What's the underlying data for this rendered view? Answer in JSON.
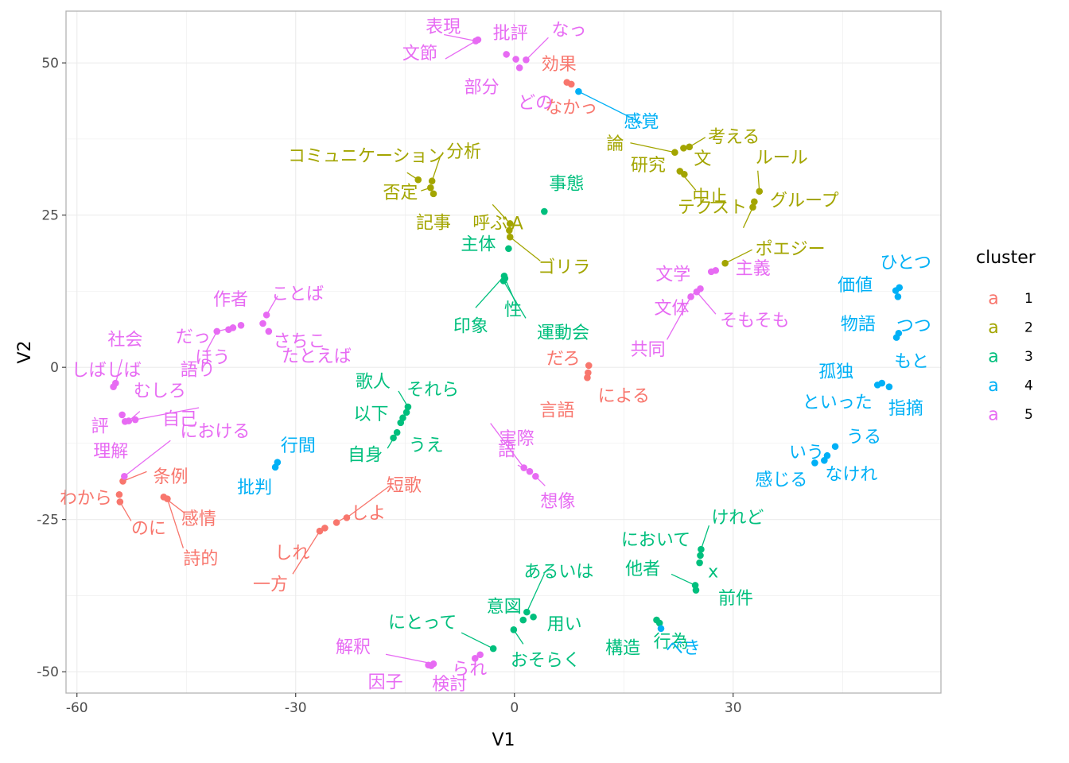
{
  "chart_data": {
    "type": "scatter",
    "xlabel": "V1",
    "ylabel": "V2",
    "xlim": [
      -61.5,
      58.5
    ],
    "ylim": [
      -53.5,
      58.5
    ],
    "x_ticks": [
      -60,
      -30,
      0,
      30
    ],
    "y_ticks": [
      -50,
      -25,
      0,
      25,
      50
    ],
    "grid": true,
    "legend": {
      "title": "cluster",
      "position": "right",
      "key_glyph": "a",
      "entries": [
        {
          "label": "1",
          "color": "#F8766D"
        },
        {
          "label": "2",
          "color": "#A3A500"
        },
        {
          "label": "3",
          "color": "#00BF7D"
        },
        {
          "label": "4",
          "color": "#00B0F6"
        },
        {
          "label": "5",
          "color": "#E76BF3"
        }
      ]
    },
    "series": [
      {
        "cluster": "1",
        "color": "#F8766D",
        "points": [
          {
            "label": "効果",
            "x": 7.2,
            "y": 46.8
          },
          {
            "label": "なかっ",
            "x": 7.8,
            "y": 46.5
          },
          {
            "label": "だろ",
            "x": 10.2,
            "y": 0.3
          },
          {
            "label": "による",
            "x": 10.1,
            "y": -0.9
          },
          {
            "label": "言語",
            "x": 10.0,
            "y": -1.7
          },
          {
            "label": "短歌",
            "x": -23.0,
            "y": -24.7
          },
          {
            "label": "しよ",
            "x": -24.4,
            "y": -25.5
          },
          {
            "label": "しれ",
            "x": -26.0,
            "y": -26.4
          },
          {
            "label": "一方",
            "x": -26.7,
            "y": -26.9
          },
          {
            "label": "条例",
            "x": -53.7,
            "y": -18.7
          },
          {
            "label": "わから",
            "x": -54.2,
            "y": -20.9
          },
          {
            "label": "のに",
            "x": -54.1,
            "y": -22.1
          },
          {
            "label": "感情",
            "x": -48.1,
            "y": -21.3
          },
          {
            "label": "詩的",
            "x": -47.6,
            "y": -21.6
          }
        ]
      },
      {
        "cluster": "2",
        "color": "#A3A500",
        "points": [
          {
            "label": "論",
            "x": 22.0,
            "y": 35.3
          },
          {
            "label": "考える",
            "x": 24.0,
            "y": 36.2
          },
          {
            "label": "文",
            "x": 23.2,
            "y": 36.0
          },
          {
            "label": "研究",
            "x": 22.7,
            "y": 32.2
          },
          {
            "label": "中止",
            "x": 23.3,
            "y": 31.7
          },
          {
            "label": "コミュニケーション",
            "x": -13.2,
            "y": 30.8
          },
          {
            "label": "分析",
            "x": -11.3,
            "y": 30.6
          },
          {
            "label": "否定",
            "x": -11.5,
            "y": 29.5
          },
          {
            "label": "記事",
            "x": -11.1,
            "y": 28.5
          },
          {
            "label": "呼ぶ",
            "x": -0.6,
            "y": 23.6
          },
          {
            "label": "A",
            "x": -0.7,
            "y": 22.5
          },
          {
            "label": "ゴリラ",
            "x": -0.6,
            "y": 21.4
          },
          {
            "label": "ルール",
            "x": 33.6,
            "y": 28.9
          },
          {
            "label": "グループ",
            "x": 32.9,
            "y": 27.2
          },
          {
            "label": "テクスト",
            "x": 32.7,
            "y": 26.3
          },
          {
            "label": "ポエジー",
            "x": 28.9,
            "y": 17.1
          }
        ]
      },
      {
        "cluster": "3",
        "color": "#00BF7D",
        "points": [
          {
            "label": "事態",
            "x": 4.1,
            "y": 25.6
          },
          {
            "label": "主体",
            "x": -0.8,
            "y": 19.5
          },
          {
            "label": "印象",
            "x": -1.4,
            "y": 15.0
          },
          {
            "label": "性",
            "x": -1.3,
            "y": 14.6
          },
          {
            "label": "運動会",
            "x": -1.5,
            "y": 14.2
          },
          {
            "label": "歌人",
            "x": -14.6,
            "y": -6.5
          },
          {
            "label": "それら",
            "x": -14.8,
            "y": -7.4
          },
          {
            "label": "以下",
            "x": -15.3,
            "y": -8.3
          },
          {
            "label": "うえ",
            "x": -15.6,
            "y": -9.1
          },
          {
            "label": "自身",
            "x": -16.1,
            "y": -10.7
          },
          {
            "label": "",
            "x": -16.6,
            "y": -11.6
          },
          {
            "label": "けれど",
            "x": 25.6,
            "y": -29.9
          },
          {
            "label": "において",
            "x": 25.5,
            "y": -30.9
          },
          {
            "label": "x",
            "x": 25.4,
            "y": -32.1
          },
          {
            "label": "他者",
            "x": 24.8,
            "y": -35.8
          },
          {
            "label": "前件",
            "x": 24.9,
            "y": -36.6
          },
          {
            "label": "行為",
            "x": 19.5,
            "y": -41.5
          },
          {
            "label": "構造",
            "x": 19.9,
            "y": -42.0
          },
          {
            "label": "あるいは",
            "x": 1.7,
            "y": -40.2
          },
          {
            "label": "用い",
            "x": 2.6,
            "y": -41.0
          },
          {
            "label": "意図",
            "x": 1.2,
            "y": -41.5
          },
          {
            "label": "おそらく",
            "x": -0.1,
            "y": -43.1
          },
          {
            "label": "にとって",
            "x": -2.9,
            "y": -46.2
          }
        ]
      },
      {
        "cluster": "4",
        "color": "#00B0F6",
        "points": [
          {
            "label": "感覚",
            "x": 8.8,
            "y": 45.3
          },
          {
            "label": "ひとつ",
            "x": 52.8,
            "y": 13.1
          },
          {
            "label": "価値",
            "x": 52.3,
            "y": 12.6
          },
          {
            "label": "つつ",
            "x": 52.6,
            "y": 11.6
          },
          {
            "label": "物語",
            "x": 52.7,
            "y": 5.6
          },
          {
            "label": "もと",
            "x": 52.4,
            "y": 4.9
          },
          {
            "label": "孤独",
            "x": 49.8,
            "y": -2.9
          },
          {
            "label": "といった",
            "x": 50.4,
            "y": -2.6
          },
          {
            "label": "指摘",
            "x": 51.4,
            "y": -3.2
          },
          {
            "label": "うる",
            "x": 44.0,
            "y": -13.0
          },
          {
            "label": "いう",
            "x": 42.9,
            "y": -14.5
          },
          {
            "label": "なけれ",
            "x": 42.5,
            "y": -15.3
          },
          {
            "label": "感じる",
            "x": 41.2,
            "y": -15.7
          },
          {
            "label": "行間",
            "x": -32.5,
            "y": -15.6
          },
          {
            "label": "批判",
            "x": -32.8,
            "y": -16.4
          },
          {
            "label": "べき",
            "x": 20.1,
            "y": -42.9
          }
        ]
      },
      {
        "cluster": "5",
        "color": "#E76BF3",
        "points": [
          {
            "label": "表現",
            "x": -5.3,
            "y": 53.6
          },
          {
            "label": "文節",
            "x": -5.0,
            "y": 53.8
          },
          {
            "label": "批評",
            "x": -1.1,
            "y": 51.4
          },
          {
            "label": "なっ",
            "x": 1.6,
            "y": 50.5
          },
          {
            "label": "部分",
            "x": 0.2,
            "y": 50.6
          },
          {
            "label": "どの",
            "x": 0.7,
            "y": 49.2
          },
          {
            "label": "文学",
            "x": 27.0,
            "y": 15.7
          },
          {
            "label": "主義",
            "x": 27.6,
            "y": 15.9
          },
          {
            "label": "文体",
            "x": 25.5,
            "y": 12.9
          },
          {
            "label": "そもそも",
            "x": 25.0,
            "y": 12.4
          },
          {
            "label": "共同",
            "x": 24.2,
            "y": 11.6
          },
          {
            "label": "ことば",
            "x": -34.0,
            "y": 8.6
          },
          {
            "label": "さちこ",
            "x": -34.5,
            "y": 7.2
          },
          {
            "label": "作者",
            "x": -37.5,
            "y": 6.9
          },
          {
            "label": "だっ",
            "x": -38.6,
            "y": 6.5
          },
          {
            "label": "ほう",
            "x": -39.2,
            "y": 6.2
          },
          {
            "label": "語り",
            "x": -40.8,
            "y": 5.9
          },
          {
            "label": "たとえば",
            "x": -33.7,
            "y": 5.9
          },
          {
            "label": "社会",
            "x": -54.7,
            "y": -2.6
          },
          {
            "label": "しばしば",
            "x": -55.0,
            "y": -3.2
          },
          {
            "label": "むしろ",
            "x": -52.9,
            "y": -8.8
          },
          {
            "label": "評",
            "x": -53.8,
            "y": -7.8
          },
          {
            "label": "自己",
            "x": -52.0,
            "y": -8.6
          },
          {
            "label": "理解",
            "x": -53.4,
            "y": -8.9
          },
          {
            "label": "における",
            "x": -53.5,
            "y": -17.9
          },
          {
            "label": "実際",
            "x": 1.3,
            "y": -16.5
          },
          {
            "label": "語",
            "x": 2.1,
            "y": -17.1
          },
          {
            "label": "想像",
            "x": 2.9,
            "y": -17.9
          },
          {
            "label": "解釈",
            "x": -11.1,
            "y": -48.7
          },
          {
            "label": "因子",
            "x": -11.8,
            "y": -48.9
          },
          {
            "label": "検討",
            "x": -11.4,
            "y": -49.0
          },
          {
            "label": "られ",
            "x": -5.4,
            "y": -47.8
          },
          {
            "label": "",
            "x": -4.7,
            "y": -47.2
          }
        ]
      }
    ]
  }
}
